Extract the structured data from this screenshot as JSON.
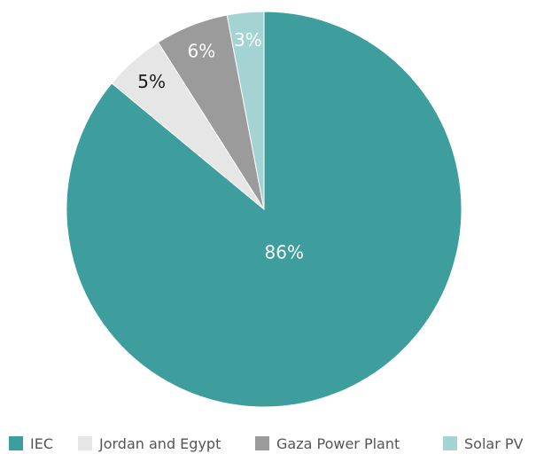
{
  "chart_data": {
    "type": "pie",
    "title": "",
    "slices": [
      {
        "label": "IEC",
        "value": 86,
        "display": "86%",
        "color": "#3e9e9d",
        "label_color": "#ffffff"
      },
      {
        "label": "Jordan and Egypt",
        "value": 5,
        "display": "5%",
        "color": "#e6e6e6",
        "label_color": "#1a1a1a"
      },
      {
        "label": "Gaza Power Plant",
        "value": 6,
        "display": "6%",
        "color": "#9b9b9b",
        "label_color": "#ffffff"
      },
      {
        "label": "Solar PV",
        "value": 3,
        "display": "3%",
        "color": "#a3d3d3",
        "label_color": "#ffffff"
      }
    ],
    "legend_position": "bottom"
  },
  "legend": {
    "items": [
      {
        "label": "IEC",
        "color": "#3e9e9d"
      },
      {
        "label": "Jordan and Egypt",
        "color": "#e6e6e6"
      },
      {
        "label": "Gaza Power Plant",
        "color": "#9b9b9b"
      },
      {
        "label": "Solar PV",
        "color": "#a3d3d3"
      }
    ]
  }
}
